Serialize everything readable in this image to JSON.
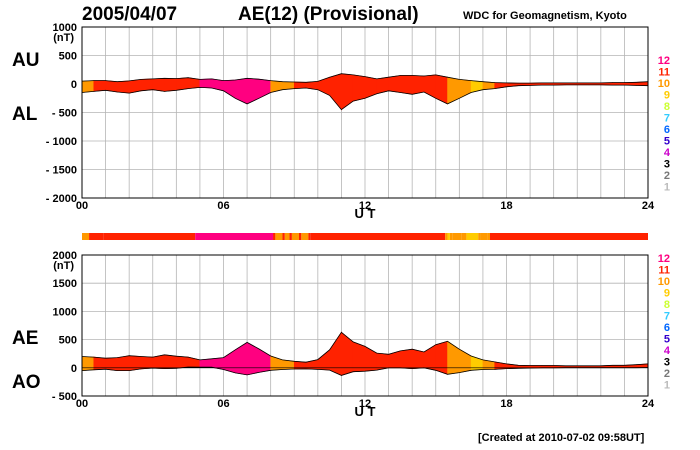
{
  "header": {
    "date": "2005/04/07",
    "title": "AE(12) (Provisional)",
    "org": "WDC for Geomagnetism, Kyoto"
  },
  "labels": {
    "au": "AU",
    "al": "AL",
    "ae": "AE",
    "ao": "AO",
    "ut": "U T",
    "unit": "(nT)"
  },
  "footer": {
    "created": "[Created at 2010-07-02 09:58UT]"
  },
  "legend": [
    {
      "label": "12",
      "color": "#ff0080"
    },
    {
      "label": "11",
      "color": "#ff2200"
    },
    {
      "label": "10",
      "color": "#ff9900"
    },
    {
      "label": "9",
      "color": "#ffcc00"
    },
    {
      "label": "8",
      "color": "#ccff33"
    },
    {
      "label": "7",
      "color": "#33ccff"
    },
    {
      "label": "6",
      "color": "#0066ff"
    },
    {
      "label": "5",
      "color": "#3300cc"
    },
    {
      "label": "4",
      "color": "#cc00cc"
    },
    {
      "label": "3",
      "color": "#000000"
    },
    {
      "label": "2",
      "color": "#777777"
    },
    {
      "label": "1",
      "color": "#bbbbbb"
    }
  ],
  "chart_data": [
    {
      "type": "area",
      "name": "AU/AL",
      "xlabel": "U T",
      "ylabel": "(nT)",
      "xlim": [
        0,
        24
      ],
      "ylim": [
        -2000,
        1000
      ],
      "xticks": [
        "00",
        "06",
        "12",
        "18",
        "24"
      ],
      "yticks": [
        "1000",
        "500",
        "0",
        "- 500",
        "- 1000",
        "- 1500",
        "- 2000"
      ],
      "x": [
        0,
        0.5,
        1,
        1.5,
        2,
        2.5,
        3,
        3.5,
        4,
        4.5,
        5,
        5.5,
        6,
        6.5,
        7,
        7.5,
        8,
        8.5,
        9,
        9.5,
        10,
        10.5,
        11,
        11.5,
        12,
        12.5,
        13,
        13.5,
        14,
        14.5,
        15,
        15.5,
        16,
        16.5,
        17,
        17.5,
        18,
        18.5,
        19,
        19.5,
        20,
        20.5,
        21,
        21.5,
        22,
        22.5,
        23,
        23.5,
        24
      ],
      "series": [
        {
          "name": "AU",
          "values": [
            50,
            60,
            60,
            40,
            55,
            80,
            90,
            100,
            95,
            110,
            80,
            90,
            60,
            70,
            100,
            85,
            60,
            40,
            35,
            30,
            45,
            120,
            180,
            160,
            130,
            90,
            120,
            150,
            150,
            140,
            160,
            120,
            80,
            60,
            40,
            25,
            20,
            15,
            15,
            20,
            20,
            20,
            20,
            20,
            20,
            25,
            25,
            30,
            40
          ]
        },
        {
          "name": "AL",
          "values": [
            -150,
            -130,
            -110,
            -140,
            -160,
            -120,
            -100,
            -130,
            -110,
            -80,
            -60,
            -70,
            -120,
            -250,
            -350,
            -250,
            -150,
            -100,
            -80,
            -70,
            -100,
            -200,
            -450,
            -300,
            -250,
            -170,
            -120,
            -150,
            -180,
            -140,
            -250,
            -350,
            -250,
            -150,
            -100,
            -80,
            -50,
            -30,
            -25,
            -20,
            -20,
            -15,
            -15,
            -15,
            -15,
            -20,
            -20,
            -25,
            -30
          ]
        }
      ]
    },
    {
      "type": "area",
      "name": "AE/AO",
      "xlabel": "U T",
      "ylabel": "(nT)",
      "xlim": [
        0,
        24
      ],
      "ylim": [
        -500,
        2000
      ],
      "xticks": [
        "00",
        "06",
        "12",
        "18",
        "24"
      ],
      "yticks": [
        "2000",
        "1500",
        "1000",
        "500",
        "0",
        "- 500"
      ],
      "x": [
        0,
        0.5,
        1,
        1.5,
        2,
        2.5,
        3,
        3.5,
        4,
        4.5,
        5,
        5.5,
        6,
        6.5,
        7,
        7.5,
        8,
        8.5,
        9,
        9.5,
        10,
        10.5,
        11,
        11.5,
        12,
        12.5,
        13,
        13.5,
        14,
        14.5,
        15,
        15.5,
        16,
        16.5,
        17,
        17.5,
        18,
        18.5,
        19,
        19.5,
        20,
        20.5,
        21,
        21.5,
        22,
        22.5,
        23,
        23.5,
        24
      ],
      "series": [
        {
          "name": "AE",
          "values": [
            200,
            190,
            170,
            180,
            215,
            200,
            190,
            230,
            205,
            190,
            140,
            160,
            180,
            320,
            450,
            335,
            210,
            140,
            115,
            100,
            145,
            320,
            630,
            460,
            380,
            260,
            240,
            300,
            330,
            280,
            410,
            470,
            330,
            210,
            140,
            105,
            70,
            45,
            40,
            40,
            40,
            35,
            35,
            35,
            35,
            45,
            45,
            55,
            70
          ]
        },
        {
          "name": "AO",
          "values": [
            -50,
            -35,
            -25,
            -50,
            -50,
            -20,
            -5,
            -15,
            -8,
            15,
            10,
            10,
            -30,
            -90,
            -125,
            -82,
            -45,
            -30,
            -22,
            -20,
            -28,
            -40,
            -135,
            -70,
            -60,
            -40,
            0,
            0,
            -15,
            0,
            -45,
            -115,
            -85,
            -45,
            -30,
            -28,
            -15,
            -8,
            -5,
            0,
            0,
            2,
            2,
            2,
            2,
            2,
            2,
            2,
            5
          ]
        }
      ]
    }
  ],
  "activity_bar": {
    "x": [
      0,
      0.3,
      0.9,
      4.8,
      8.1,
      8.2,
      8.5,
      8.6,
      8.8,
      8.9,
      9.2,
      9.3,
      9.6,
      9.7,
      15.4,
      15.5,
      15.6,
      15.7,
      16.1,
      16.3,
      16.8,
      16.9,
      17.2,
      17.3,
      24
    ],
    "levels": [
      "10",
      "11",
      "11",
      "12",
      "11",
      "10",
      "11",
      "10",
      "11",
      "10",
      "11",
      "10",
      "11",
      "11",
      "10",
      "9",
      "10",
      "10",
      "10",
      "9",
      "10",
      "10",
      "10",
      "11"
    ]
  }
}
